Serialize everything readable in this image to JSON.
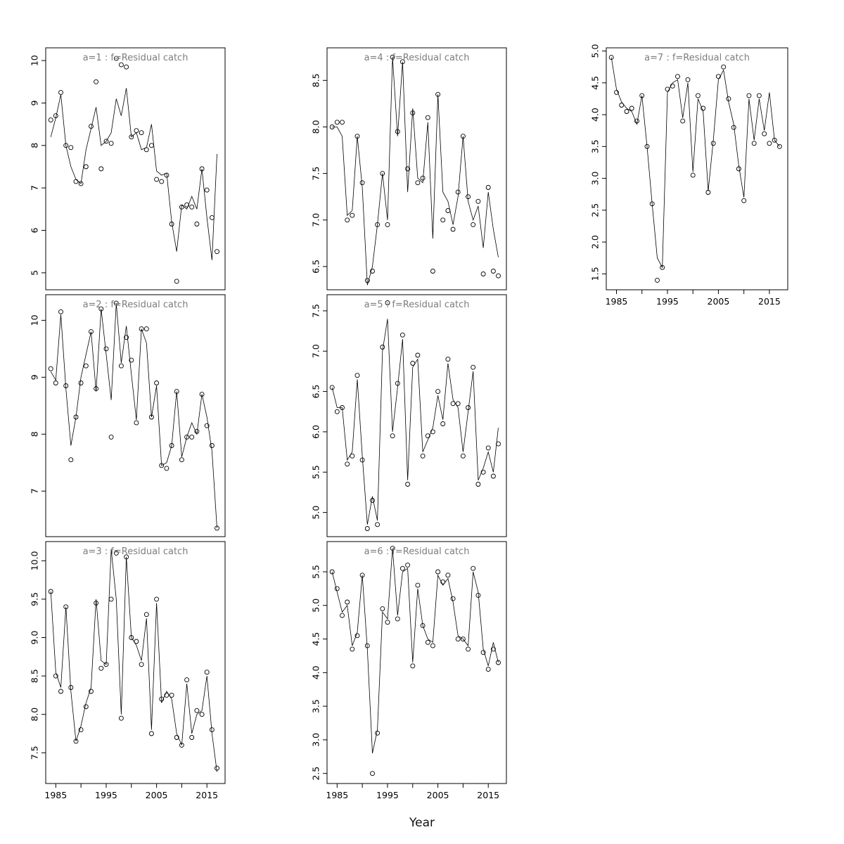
{
  "xlabel": "Year",
  "colors": {
    "title": "#7d7d7d",
    "line": "#000000",
    "axis": "#000000",
    "point": "#000000"
  },
  "xaxis": {
    "range": [
      1983,
      2018.6
    ],
    "tick_values": [
      1985,
      1990,
      1995,
      2000,
      2005,
      2010,
      2015
    ],
    "labeled_ticks": [
      1985,
      1995,
      2005,
      2015
    ]
  },
  "years": [
    1984,
    1985,
    1986,
    1987,
    1988,
    1989,
    1990,
    1991,
    1992,
    1993,
    1994,
    1995,
    1996,
    1997,
    1998,
    1999,
    2000,
    2001,
    2002,
    2003,
    2004,
    2005,
    2006,
    2007,
    2008,
    2009,
    2010,
    2011,
    2012,
    2013,
    2014,
    2015,
    2016,
    2017
  ],
  "chart_data": [
    {
      "id": "a1",
      "type": "line",
      "title": "a=1 : f=Residual catch",
      "row": 0,
      "col": 0,
      "show_x_labels": false,
      "ylim": [
        4.6,
        10.3
      ],
      "ytick_values": [
        5,
        6,
        7,
        8,
        9,
        10
      ],
      "ytick_labels": [
        "5",
        "6",
        "7",
        "8",
        "9",
        "10"
      ],
      "series": [
        {
          "name": "observed",
          "style": "points",
          "values": [
            8.6,
            8.7,
            9.25,
            8.0,
            7.95,
            7.15,
            7.1,
            7.5,
            8.45,
            9.5,
            7.45,
            8.1,
            8.05,
            10.05,
            9.9,
            9.85,
            8.2,
            8.35,
            8.3,
            7.9,
            8.0,
            7.2,
            7.15,
            7.3,
            6.15,
            4.8,
            6.55,
            6.6,
            6.55,
            6.15,
            7.45,
            6.95,
            6.3,
            5.5
          ]
        },
        {
          "name": "fitted",
          "style": "line",
          "values": [
            8.2,
            8.65,
            9.2,
            8.0,
            7.5,
            7.2,
            7.1,
            7.9,
            8.4,
            8.9,
            8.0,
            8.1,
            8.3,
            9.1,
            8.7,
            9.35,
            8.2,
            8.3,
            7.9,
            7.95,
            8.5,
            7.4,
            7.3,
            7.35,
            6.2,
            5.5,
            6.6,
            6.5,
            6.8,
            6.5,
            7.45,
            6.3,
            5.3,
            7.8
          ]
        }
      ]
    },
    {
      "id": "a2",
      "type": "line",
      "title": "a=2 : f=Residual catch",
      "row": 1,
      "col": 0,
      "show_x_labels": false,
      "ylim": [
        6.2,
        10.45
      ],
      "ytick_values": [
        7,
        8,
        9,
        10
      ],
      "ytick_labels": [
        "7",
        "8",
        "9",
        "10"
      ],
      "series": [
        {
          "name": "observed",
          "style": "points",
          "values": [
            9.15,
            8.9,
            10.15,
            8.85,
            7.55,
            8.3,
            8.9,
            9.2,
            9.8,
            8.8,
            10.2,
            9.5,
            7.95,
            10.3,
            9.2,
            9.7,
            9.3,
            8.2,
            9.85,
            9.85,
            8.3,
            8.9,
            7.45,
            7.4,
            7.8,
            8.75,
            7.55,
            7.95,
            7.95,
            8.05,
            8.7,
            8.15,
            7.8,
            6.35
          ]
        },
        {
          "name": "fitted",
          "style": "line",
          "values": [
            9.1,
            8.95,
            10.1,
            8.8,
            7.8,
            8.3,
            9.0,
            9.4,
            9.8,
            8.75,
            10.2,
            9.4,
            8.6,
            10.3,
            9.25,
            9.9,
            9.05,
            8.25,
            9.85,
            9.6,
            8.3,
            8.85,
            7.45,
            7.5,
            7.8,
            8.75,
            7.6,
            7.95,
            8.2,
            8.0,
            8.7,
            8.3,
            7.7,
            6.35
          ]
        }
      ]
    },
    {
      "id": "a3",
      "type": "line",
      "title": "a=3 : f=Residual catch",
      "row": 2,
      "col": 0,
      "show_x_labels": true,
      "ylim": [
        7.1,
        10.25
      ],
      "ytick_values": [
        7.5,
        8.0,
        8.5,
        9.0,
        9.5,
        10.0
      ],
      "ytick_labels": [
        "7.5",
        "8.0",
        "8.5",
        "9.0",
        "9.5",
        "10.0"
      ],
      "series": [
        {
          "name": "observed",
          "style": "points",
          "values": [
            9.6,
            8.5,
            8.3,
            9.4,
            8.35,
            7.65,
            7.8,
            8.1,
            8.3,
            9.45,
            8.6,
            8.65,
            9.5,
            10.1,
            7.95,
            10.05,
            9.0,
            8.95,
            8.65,
            9.3,
            7.75,
            9.5,
            8.2,
            8.25,
            8.25,
            7.7,
            7.6,
            8.45,
            7.7,
            8.05,
            8.0,
            8.55,
            7.8,
            7.3
          ]
        },
        {
          "name": "fitted",
          "style": "line",
          "values": [
            9.6,
            8.55,
            8.35,
            9.4,
            8.3,
            7.65,
            7.85,
            8.15,
            8.35,
            9.5,
            8.7,
            8.65,
            10.15,
            9.5,
            8.0,
            10.05,
            9.0,
            8.9,
            8.7,
            9.25,
            7.8,
            9.45,
            8.15,
            8.3,
            8.2,
            7.75,
            7.6,
            8.4,
            7.75,
            8.0,
            8.05,
            8.5,
            7.75,
            7.25
          ]
        }
      ]
    },
    {
      "id": "a4",
      "type": "line",
      "title": "a=4 : f=Residual catch",
      "row": 0,
      "col": 1,
      "show_x_labels": false,
      "ylim": [
        6.25,
        8.85
      ],
      "ytick_values": [
        6.5,
        7.0,
        7.5,
        8.0,
        8.5
      ],
      "ytick_labels": [
        "6.5",
        "7.0",
        "7.5",
        "8.0",
        "8.5"
      ],
      "series": [
        {
          "name": "observed",
          "style": "points",
          "values": [
            8.0,
            8.05,
            8.05,
            7.0,
            7.05,
            7.9,
            7.4,
            6.35,
            6.45,
            6.95,
            7.5,
            6.95,
            8.75,
            7.95,
            8.7,
            7.55,
            8.15,
            7.4,
            7.45,
            8.1,
            6.45,
            8.35,
            7.0,
            7.1,
            6.9,
            7.3,
            7.9,
            7.25,
            6.95,
            7.2,
            6.42,
            7.35,
            6.45,
            6.4
          ]
        },
        {
          "name": "fitted",
          "style": "line",
          "values": [
            8.0,
            8.0,
            7.9,
            7.05,
            7.1,
            7.9,
            7.35,
            6.3,
            6.5,
            6.95,
            7.5,
            7.0,
            8.75,
            7.9,
            8.7,
            7.3,
            8.2,
            7.45,
            7.4,
            8.05,
            6.8,
            8.35,
            7.3,
            7.2,
            6.95,
            7.25,
            7.9,
            7.2,
            7.0,
            7.15,
            6.7,
            7.3,
            6.9,
            6.6
          ]
        }
      ]
    },
    {
      "id": "a5",
      "type": "line",
      "title": "a=5 : f=Residual catch",
      "row": 1,
      "col": 1,
      "show_x_labels": false,
      "ylim": [
        4.7,
        7.7
      ],
      "ytick_values": [
        5.0,
        5.5,
        6.0,
        6.5,
        7.0,
        7.5
      ],
      "ytick_labels": [
        "5.0",
        "5.5",
        "6.0",
        "6.5",
        "7.0",
        "7.5"
      ],
      "series": [
        {
          "name": "observed",
          "style": "points",
          "values": [
            6.55,
            6.25,
            6.3,
            5.6,
            5.7,
            6.7,
            5.65,
            4.8,
            5.15,
            4.85,
            7.05,
            7.6,
            5.95,
            6.6,
            7.2,
            5.35,
            6.85,
            6.95,
            5.7,
            5.95,
            6.0,
            6.5,
            6.1,
            6.9,
            6.35,
            6.35,
            5.7,
            6.3,
            6.8,
            5.35,
            5.5,
            5.8,
            5.45,
            5.85
          ]
        },
        {
          "name": "fitted",
          "style": "line",
          "values": [
            6.55,
            6.3,
            6.3,
            5.65,
            5.75,
            6.65,
            5.7,
            4.85,
            5.2,
            4.9,
            7.0,
            7.4,
            6.0,
            6.55,
            7.15,
            5.4,
            6.8,
            6.9,
            5.75,
            5.9,
            6.05,
            6.45,
            6.15,
            6.85,
            6.4,
            6.3,
            5.75,
            6.25,
            6.75,
            5.4,
            5.55,
            5.75,
            5.5,
            6.05
          ]
        }
      ]
    },
    {
      "id": "a6",
      "type": "line",
      "title": "a=6 : f=Residual catch",
      "row": 2,
      "col": 1,
      "show_x_labels": true,
      "ylim": [
        2.35,
        5.95
      ],
      "ytick_values": [
        2.5,
        3.0,
        3.5,
        4.0,
        4.5,
        5.0,
        5.5
      ],
      "ytick_labels": [
        "2.5",
        "3.0",
        "3.5",
        "4.0",
        "4.5",
        "5.0",
        "5.5"
      ],
      "series": [
        {
          "name": "observed",
          "style": "points",
          "values": [
            5.5,
            5.25,
            4.85,
            5.05,
            4.35,
            4.55,
            5.45,
            4.4,
            2.5,
            3.1,
            4.95,
            4.75,
            5.85,
            4.8,
            5.55,
            5.6,
            4.1,
            5.3,
            4.7,
            4.45,
            4.4,
            5.5,
            5.35,
            5.45,
            5.1,
            4.5,
            4.5,
            4.35,
            5.55,
            5.15,
            4.3,
            4.05,
            4.35,
            4.15
          ]
        },
        {
          "name": "fitted",
          "style": "line",
          "values": [
            5.5,
            5.2,
            4.9,
            5.0,
            4.4,
            4.6,
            5.45,
            4.35,
            2.8,
            3.15,
            4.9,
            4.8,
            5.85,
            4.85,
            5.5,
            5.55,
            4.15,
            5.25,
            4.7,
            4.5,
            4.45,
            5.45,
            5.3,
            5.4,
            5.05,
            4.55,
            4.5,
            4.4,
            5.5,
            5.2,
            4.35,
            4.1,
            4.45,
            4.15
          ]
        }
      ]
    },
    {
      "id": "a7",
      "type": "line",
      "title": "a=7 : f=Residual catch",
      "row": 0,
      "col": 2,
      "show_x_labels": true,
      "ylim": [
        1.25,
        5.05
      ],
      "ytick_values": [
        1.5,
        2.0,
        2.5,
        3.0,
        3.5,
        4.0,
        4.5,
        5.0
      ],
      "ytick_labels": [
        "1.5",
        "2.0",
        "2.5",
        "3.0",
        "3.5",
        "4.0",
        "4.5",
        "5.0"
      ],
      "series": [
        {
          "name": "observed",
          "style": "points",
          "values": [
            4.9,
            4.35,
            4.15,
            4.05,
            4.1,
            3.9,
            4.3,
            3.5,
            2.6,
            1.4,
            1.6,
            4.4,
            4.45,
            4.6,
            3.9,
            4.55,
            3.05,
            4.3,
            4.1,
            2.78,
            3.55,
            4.6,
            4.75,
            4.25,
            3.8,
            3.15,
            2.65,
            4.3,
            3.55,
            4.3,
            3.7,
            3.55,
            3.6,
            3.5
          ]
        },
        {
          "name": "fitted",
          "style": "line",
          "values": [
            4.9,
            4.4,
            4.2,
            4.1,
            4.05,
            3.85,
            4.3,
            3.5,
            2.6,
            1.75,
            1.6,
            4.35,
            4.5,
            4.55,
            3.95,
            4.5,
            3.1,
            4.25,
            4.05,
            2.8,
            3.6,
            4.55,
            4.7,
            4.2,
            3.85,
            3.2,
            2.7,
            4.25,
            3.6,
            4.25,
            3.75,
            4.35,
            3.6,
            3.5
          ]
        }
      ]
    }
  ]
}
